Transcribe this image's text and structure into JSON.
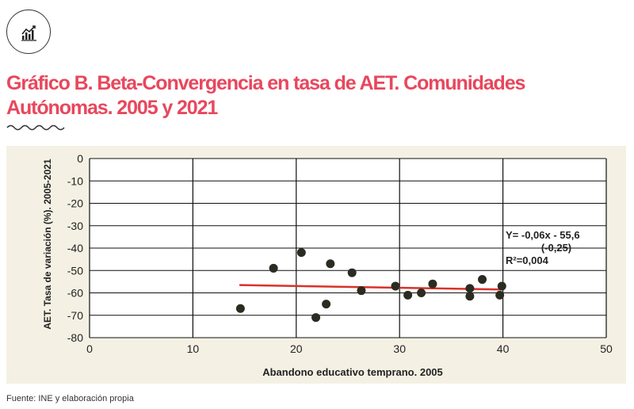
{
  "header": {
    "logo_icon": "chart-growth-icon",
    "title_line1": "Gráfico B.  Beta-Convergencia en tasa de AET. Comunidades",
    "title_line2": "Autónomas. 2005 y 2021"
  },
  "footer": {
    "source": "Fuente: INE y elaboración propia"
  },
  "colors": {
    "title": "#e8475d",
    "panel_bg": "#f4f1e4",
    "plot_bg": "#ffffff",
    "points": "#2b2b22",
    "trend": "#d9322a"
  },
  "chart_data": {
    "type": "scatter",
    "title": "",
    "xlabel": "Abandono educativo temprano. 2005",
    "ylabel": "AET. Tasa de variación (%). 2005-2021",
    "xlim": [
      0,
      50
    ],
    "ylim": [
      -80,
      0
    ],
    "x_ticks": [
      0,
      10,
      20,
      30,
      40,
      50
    ],
    "y_ticks": [
      0,
      -10,
      -20,
      -30,
      -40,
      -50,
      -60,
      -70,
      -80
    ],
    "y_tick_labels": [
      "0",
      "-10",
      "-20",
      "-30",
      "-40",
      "-50",
      "-60",
      "-70",
      "-80"
    ],
    "grid": true,
    "points": [
      {
        "x": 14.6,
        "y": -67
      },
      {
        "x": 17.8,
        "y": -49
      },
      {
        "x": 20.5,
        "y": -42
      },
      {
        "x": 21.9,
        "y": -71
      },
      {
        "x": 22.9,
        "y": -65
      },
      {
        "x": 23.3,
        "y": -47
      },
      {
        "x": 25.4,
        "y": -51
      },
      {
        "x": 26.3,
        "y": -59
      },
      {
        "x": 29.6,
        "y": -57
      },
      {
        "x": 30.8,
        "y": -61
      },
      {
        "x": 32.1,
        "y": -60
      },
      {
        "x": 33.2,
        "y": -56
      },
      {
        "x": 36.8,
        "y": -58
      },
      {
        "x": 36.8,
        "y": -61.5
      },
      {
        "x": 38.0,
        "y": -54
      },
      {
        "x": 39.7,
        "y": -61
      },
      {
        "x": 39.9,
        "y": -57
      }
    ],
    "trendline": {
      "x": [
        14.5,
        40
      ],
      "y": [
        -56.5,
        -58.5
      ]
    },
    "annotation": {
      "line1": "Y= -0,06x - 55,6",
      "line2": "(-0,25)",
      "line3": "R²=0,004"
    }
  }
}
